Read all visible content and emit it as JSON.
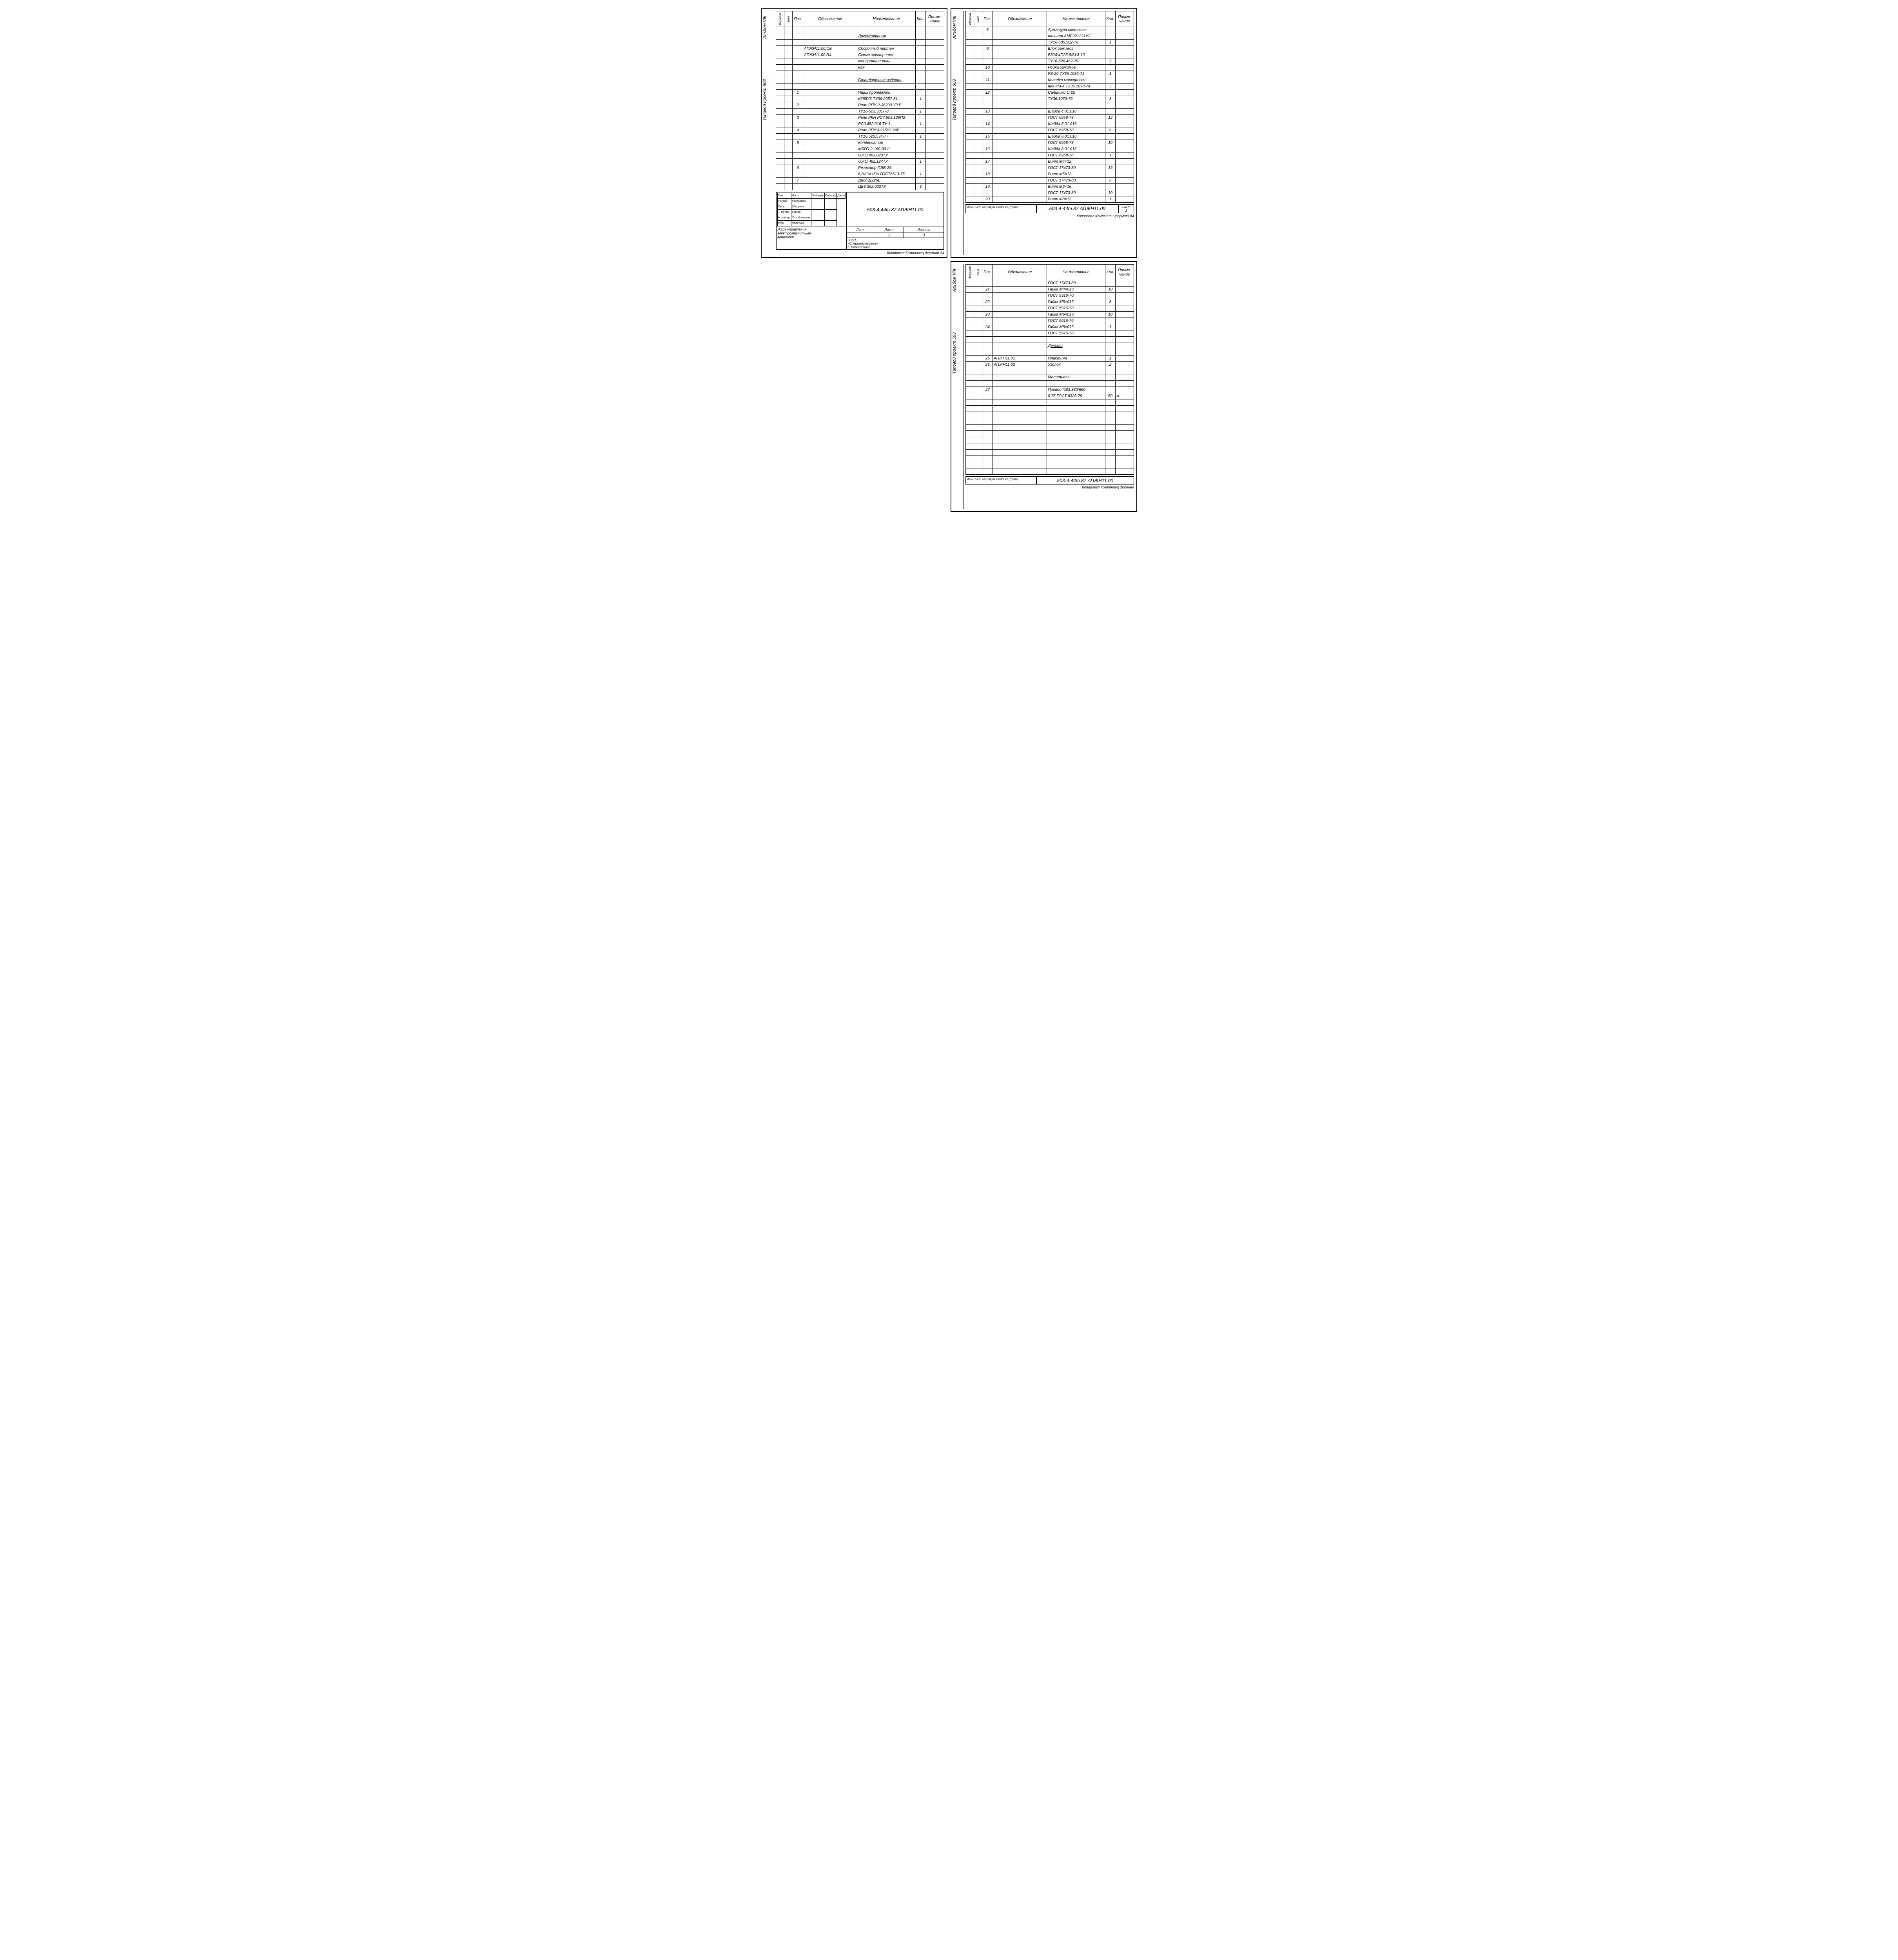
{
  "doc": {
    "album": "Альбом VIII",
    "project": "Типовой проект 503",
    "columns": {
      "format": "Формат",
      "zone": "Зона",
      "pos": "Поз.",
      "designation": "Обозначение",
      "name": "Наименование",
      "qty": "Кол.",
      "note": "Приме-\nчание"
    },
    "colors": {
      "line": "#000000",
      "bg": "#ffffff"
    }
  },
  "panelTL": {
    "rows": [
      {},
      {
        "name": "Документация",
        "underline": true
      },
      {},
      {
        "designation": "АПЖН11.00.СБ",
        "name": "Сборочный чертеж"
      },
      {
        "designation": "АПЖН11.00 Э4",
        "name": "Схема электричес-"
      },
      {
        "name": "кая принципиаль-"
      },
      {
        "name": "ная"
      },
      {},
      {
        "name": "Стандартные изделия",
        "underline": true
      },
      {},
      {
        "pos": "1",
        "name": "Ящик протяжной"
      },
      {
        "name": "К655У3 ТУ36-2057-81",
        "qty": "1"
      },
      {
        "pos": "2",
        "name": "Реле РПУ-2-36200 У3 Б"
      },
      {
        "name": "ТУ16-523.331-78",
        "qty": "1"
      },
      {
        "pos": "3",
        "name": "Реле РКН РС4.503.139П2"
      },
      {
        "name": "РС0.452.016 ТУ-1",
        "qty": "1"
      },
      {
        "pos": "4",
        "name": "Реле РПУЧ-315У3 24В"
      },
      {
        "name": "ТУ16.523.534-77",
        "qty": "1"
      },
      {
        "pos": "5",
        "name": "Конденсатор"
      },
      {
        "name": "МБГО-2-160-30-II"
      },
      {
        "name": "ОЖО 462.023ТУ"
      },
      {
        "name": "ОЖО.462.124ТУ",
        "qty": "1"
      },
      {
        "pos": "6",
        "name": "Резистор ПЭВ-25"
      },
      {
        "name": "6,8кОм±5% ГОСТ6513-75",
        "qty": "1"
      },
      {
        "pos": "7",
        "name": "Диод Д226Б"
      },
      {
        "name": "ЦБ3.362.002ТУ",
        "qty": "3"
      }
    ],
    "titleblock": {
      "docnum": "503-4-44m.87   АПЖН11.00",
      "title1": "Ящик управления",
      "title2": "электромагнитным",
      "title3": "вентилем",
      "firm1": "ГПКН",
      "firm2": "«Спецавтоматика»",
      "firm3": "г. Новосибирск",
      "lit": "Лит.",
      "list": "Лист",
      "list_n": "1",
      "lists": "Листов",
      "lists_n": "3",
      "signers": [
        [
          "Изм",
          "Лист",
          "№ докум.",
          "Подпись",
          "Дата"
        ],
        [
          "Разраб",
          "Кожемякин",
          "",
          ""
        ],
        [
          "Пров.",
          "Шишулин",
          "",
          ""
        ],
        [
          "Т. контр.",
          "Ершов",
          "",
          ""
        ],
        [
          "Н. контр.",
          "Солодовников",
          "",
          ""
        ],
        [
          "Утв.",
          "Челочнов",
          "",
          ""
        ]
      ],
      "bottom": "Копировал Компаниец           формат А4"
    }
  },
  "panelTR": {
    "rows": [
      {
        "pos": "8",
        "name": "Арматура светосиг-"
      },
      {
        "name": "нальная АМЕ321221У2"
      },
      {
        "name": "ТУ16-535.582-76",
        "qty": "1"
      },
      {
        "pos": "9",
        "name": "Блок зажимов"
      },
      {
        "name": "Б324-4П25-8/8У3-10"
      },
      {
        "name": "ТУ16-526.462-79",
        "qty": "2"
      },
      {
        "pos": "10",
        "name": "Рейка зажимов"
      },
      {
        "name": "РЗ-20 ТУ36.1085-74",
        "qty": "1"
      },
      {
        "pos": "11",
        "name": "Колодка маркировоч-"
      },
      {
        "name": "ная КМ-4 ТУ36.1078-74",
        "qty": "3"
      },
      {
        "pos": "12",
        "name": "Сальники С-22"
      },
      {
        "name": "ТУ36.1073-75",
        "qty": "3"
      },
      {},
      {
        "pos": "13",
        "name": "Шайба 4.01.016"
      },
      {
        "name": "ГОСТ 6958-78",
        "qty": "12"
      },
      {
        "pos": "14",
        "name": "Шайба 5.01.016"
      },
      {
        "name": "ГОСТ 6958-78",
        "qty": "6"
      },
      {
        "pos": "15",
        "name": "Шайба 6.01.016"
      },
      {
        "name": "ГОСТ 6958-78",
        "qty": "10"
      },
      {
        "pos": "16",
        "name": "Шайба 8.01.016"
      },
      {
        "name": "ГОСТ 6958-78",
        "qty": "1"
      },
      {
        "pos": "17",
        "name": "Винт М4×12"
      },
      {
        "name": "ГОСТ 17473-80",
        "qty": "15"
      },
      {
        "pos": "18",
        "name": "Винт М5×12"
      },
      {
        "name": "ГОСТ 17473-80",
        "qty": "6"
      },
      {
        "pos": "19",
        "name": "Винт М6×16"
      },
      {
        "name": "ГОСТ 17473-80",
        "qty": "10"
      },
      {
        "pos": "20",
        "name": "Винт М8×12",
        "qty": "1"
      }
    ],
    "footer": {
      "docnum": "503-4-44m.87 АПЖН11.00",
      "list": "Лист",
      "list_n": "2",
      "small": "Изм Лист № докум Подпись Дата",
      "bottom": "Копировал Компаниец           формат А4"
    }
  },
  "panelBR": {
    "rows": [
      {
        "name": "ГОСТ 17473-80"
      },
      {
        "pos": "21",
        "name": "Гайка М4×016",
        "qty": "10"
      },
      {
        "name": "ГОСТ 5916-70"
      },
      {
        "pos": "22",
        "name": "Гайка М5×016",
        "qty": "8"
      },
      {
        "name": "ГОСТ 5916-70"
      },
      {
        "pos": "23",
        "name": "Гайка М6×016",
        "qty": "10"
      },
      {
        "name": "ГОСТ 5916-70"
      },
      {
        "pos": "24",
        "name": "Гайка М8×016",
        "qty": "1"
      },
      {
        "name": "ГОСТ 5916-70"
      },
      {},
      {
        "name": "Детали",
        "underline": true
      },
      {},
      {
        "pos": "25",
        "designation": "АПЖН11.01",
        "name": "Пластина",
        "qty": "1"
      },
      {
        "pos": "26",
        "designation": "АПЖН11.02",
        "name": "Уголок",
        "qty": "2"
      },
      {},
      {
        "name": "Материалы",
        "underline": true
      },
      {},
      {
        "pos": "27",
        "name": "Провод ПВ3.380/660"
      },
      {
        "name": "0,75 ГОСТ 6323-79",
        "qty": "50",
        "note": "м"
      },
      {},
      {},
      {},
      {},
      {},
      {},
      {},
      {},
      {},
      {},
      {},
      {}
    ],
    "footer": {
      "docnum": "503-4-44m.87 АПЖН11.00",
      "small": "Изм Лист № докум Подпись Дата",
      "bottom": "Копировал Компаниец           формат"
    }
  }
}
